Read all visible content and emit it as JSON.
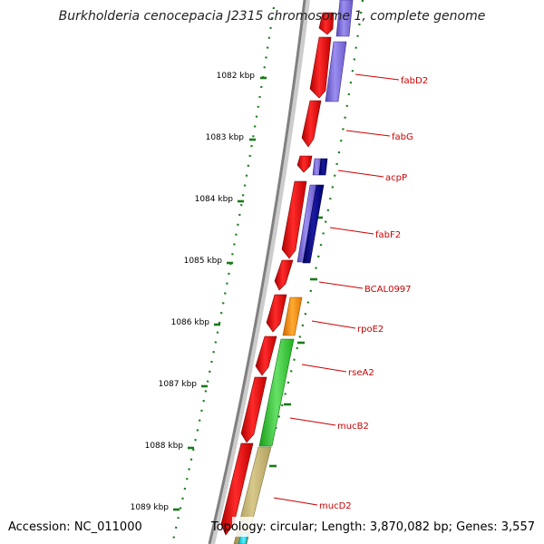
{
  "title": "Burkholderia cenocepacia J2315 chromosome 1, complete genome",
  "footer": {
    "accession": "Accession: NC_011000",
    "topology": "Topology: circular; Length: 3,870,082 bp; Genes: 3,557"
  },
  "colors": {
    "forward_gene": "#ff0000",
    "kbp_tick": "#1a7a1a",
    "gene_label": "#cc0000",
    "backbone": "#808080"
  },
  "kbp_ticks": [
    "1082 kbp",
    "1083 kbp",
    "1084 kbp",
    "1085 kbp",
    "1086 kbp",
    "1087 kbp",
    "1088 kbp",
    "1089 kbp"
  ],
  "gene_labels": [
    "fabD2",
    "fabG",
    "acpP",
    "fabF2",
    "BCAL0997",
    "rpoE2",
    "rseA2",
    "mucB2",
    "mucD2"
  ]
}
